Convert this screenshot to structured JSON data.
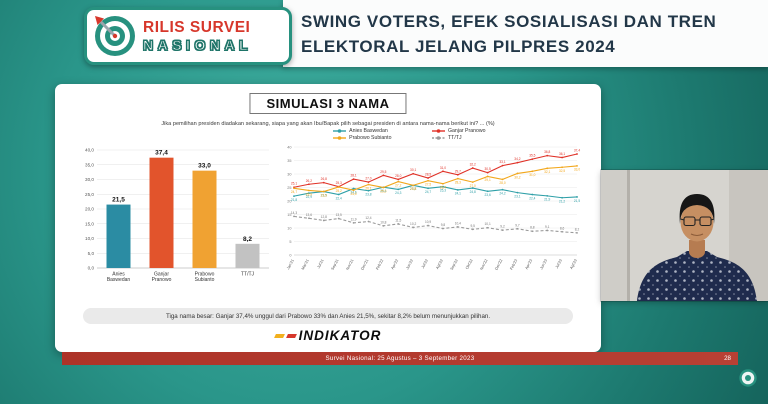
{
  "header": {
    "logo": {
      "line1": "RILIS SURVEI",
      "line2": "NASIONAL"
    },
    "title_line1": "SWING VOTERS, EFEK SOSIALISASI DAN TREN",
    "title_line2": "ELEKTORAL JELANG PILPRES 2024"
  },
  "slide": {
    "title": "SIMULASI 3 NAMA",
    "question": "Jika pemilihan presiden diadakan sekarang, siapa yang akan Ibu/Bapak pilih sebagai presiden di antara nama-nama berikut ini? ... (%)",
    "note": "Tiga nama besar: Ganjar 37,4% unggul dari Prabowo 33% dan Anies 21,5%, sekitar 8,2% belum menunjukkan pilihan.",
    "brand": "INDIKATOR",
    "footer": {
      "text": "Survei Nasional: 25 Agustus – 3 September 2023",
      "page": "28"
    }
  },
  "colors": {
    "background_teal": "#2a968a",
    "logo_green": "#27917f",
    "logo_red": "#d7372b",
    "footer_red": "#b23a2e",
    "title_text": "#223748"
  },
  "chart_data": [
    {
      "type": "bar",
      "title": "",
      "categories": [
        "Anies\nBaswedan",
        "Ganjar\nPranowo",
        "Prabowo\nSubianto",
        "TT/TJ"
      ],
      "values": [
        21.5,
        37.4,
        33.0,
        8.2
      ],
      "labels": [
        "21,5",
        "37,4",
        "33,0",
        "8,2"
      ],
      "colors": [
        "#2b8ca3",
        "#e2542c",
        "#f0a232",
        "#c2c2c2"
      ],
      "xlabel": "",
      "ylabel": "",
      "ylim": [
        0,
        40
      ],
      "ytick_step": 5,
      "grid": true
    },
    {
      "type": "line",
      "title": "",
      "x": [
        "Jan'21",
        "Mar'21",
        "Jul'21",
        "Sep'21",
        "Nov'21",
        "Dec'21",
        "Feb'22",
        "Apr'22",
        "Jun'22",
        "Jul'22",
        "Agt'22",
        "Sep'22",
        "Okt'22",
        "Nov'22",
        "Dec'22",
        "Feb'23",
        "Apr'23",
        "Jun'23",
        "Jul'23",
        "Agt'23"
      ],
      "series": [
        {
          "name": "Anies Baswedan",
          "color": "#2fa0a8",
          "dash": false,
          "values": [
            21.8,
            22.9,
            23.5,
            22.4,
            24.6,
            23.8,
            25.1,
            24.3,
            25.8,
            24.7,
            25.3,
            24.1,
            24.8,
            23.6,
            24.2,
            23.1,
            22.4,
            21.9,
            21.2,
            21.5
          ]
        },
        {
          "name": "Ganjar Pranowo",
          "color": "#e03127",
          "dash": false,
          "values": [
            25.1,
            26.2,
            26.8,
            25.3,
            28.1,
            27.0,
            29.5,
            28.0,
            30.1,
            28.5,
            31.0,
            29.7,
            32.2,
            30.5,
            33.1,
            34.2,
            35.5,
            36.8,
            36.1,
            37.4
          ]
        },
        {
          "name": "Prabowo Subianto",
          "color": "#f2a71b",
          "dash": false,
          "values": [
            24.7,
            23.9,
            23.5,
            25.2,
            24.0,
            26.1,
            25.0,
            27.2,
            25.8,
            27.5,
            26.4,
            28.3,
            27.0,
            29.1,
            28.0,
            30.2,
            31.0,
            32.1,
            32.5,
            33.0
          ]
        },
        {
          "name": "TT/TJ",
          "color": "#9a9a9a",
          "dash": true,
          "values": [
            14.3,
            13.6,
            12.8,
            13.5,
            11.9,
            12.4,
            10.8,
            11.5,
            10.2,
            10.9,
            9.8,
            10.4,
            9.5,
            10.1,
            9.2,
            9.7,
            8.8,
            9.1,
            8.6,
            8.2
          ]
        }
      ],
      "xlabel": "",
      "ylabel": "",
      "ylim": [
        0,
        40
      ],
      "ytick_step": 5,
      "grid": true,
      "legend_position": "top"
    }
  ]
}
